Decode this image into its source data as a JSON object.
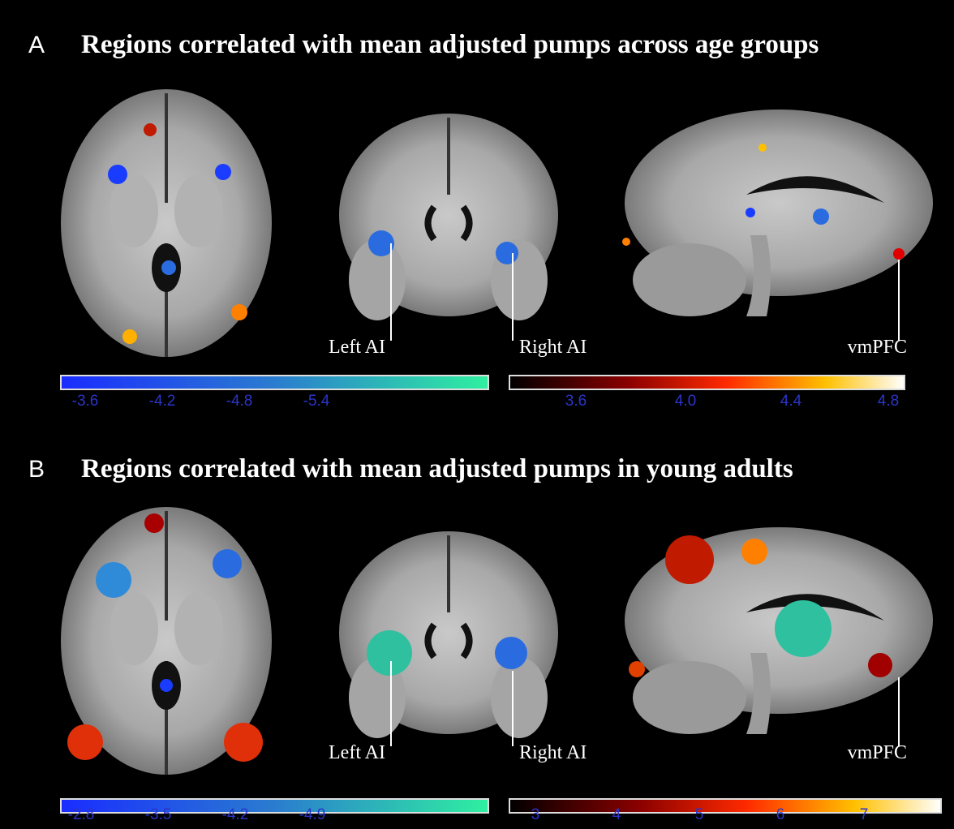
{
  "panels": [
    {
      "letter": "A",
      "title": "Regions correlated with mean adjusted pumps across age groups",
      "labels": [
        "Left AI",
        "Right AI",
        "vmPFC"
      ],
      "negative_scale": {
        "ticks": [
          "-3.6",
          "-4.2",
          "-4.8",
          "-5.4"
        ]
      },
      "positive_scale": {
        "ticks": [
          "3.6",
          "4.0",
          "4.4",
          "4.8"
        ]
      }
    },
    {
      "letter": "B",
      "title": "Regions correlated with mean adjusted pumps in young adults",
      "labels": [
        "Left AI",
        "Right AI",
        "vmPFC"
      ],
      "negative_scale": {
        "ticks": [
          "-2.8",
          "-3.5",
          "-4.2",
          "-4.9"
        ]
      },
      "positive_scale": {
        "ticks": [
          "3",
          "4",
          "5",
          "6",
          "7"
        ]
      }
    }
  ]
}
